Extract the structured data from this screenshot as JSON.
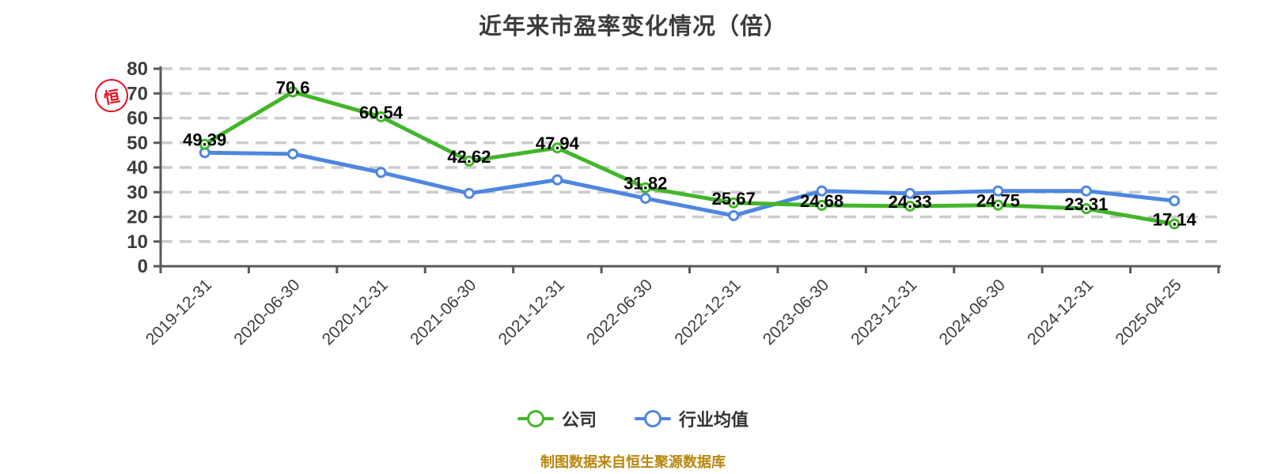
{
  "title": "近年来市盈率变化情况（倍）",
  "watermark": {
    "seal_char": "恒"
  },
  "footer": {
    "text": "制图数据来自恒生聚源数据库"
  },
  "colors": {
    "company": "#42b629",
    "industry_average": "#4e86e0",
    "grid": "#cccccc",
    "axis": "#595959",
    "title_text": "#3c3c3c",
    "tick_text": "#3d3d3d",
    "data_label": "#000000",
    "legend_text": "#333333",
    "footer_text": "#b8860b",
    "seal": "#e60012",
    "marker_fill": "#ffffff"
  },
  "chart_data": {
    "type": "line",
    "title": "近年来市盈率变化情况（倍）",
    "xlabel": "",
    "ylabel": "",
    "ylim": [
      0,
      80
    ],
    "y_ticks": [
      0,
      10,
      20,
      30,
      40,
      50,
      60,
      70,
      80
    ],
    "grid": "horizontal-dashed",
    "legend_position": "bottom-center",
    "categories": [
      "2019-12-31",
      "2020-06-30",
      "2020-12-31",
      "2021-06-30",
      "2021-12-31",
      "2022-06-30",
      "2022-12-31",
      "2023-06-30",
      "2023-12-31",
      "2024-06-30",
      "2024-12-31",
      "2025-04-25"
    ],
    "series": [
      {
        "id": "company",
        "name": "公司",
        "color": "#42b629",
        "values": [
          49.39,
          70.6,
          60.54,
          42.62,
          47.94,
          31.82,
          25.67,
          24.68,
          24.33,
          24.75,
          23.31,
          17.14
        ],
        "data_labels": [
          "49.39",
          "70.6",
          "60.54",
          "42.62",
          "47.94",
          "31.82",
          "25.67",
          "24.68",
          "24.33",
          "24.75",
          "23.31",
          "17.14"
        ]
      },
      {
        "id": "industry-average",
        "name": "行业均值",
        "color": "#4e86e0",
        "values": [
          46,
          45.5,
          38,
          29.5,
          35,
          27.5,
          20.5,
          30.5,
          29.5,
          30.5,
          30.5,
          26.5
        ],
        "data_labels": null
      }
    ]
  }
}
